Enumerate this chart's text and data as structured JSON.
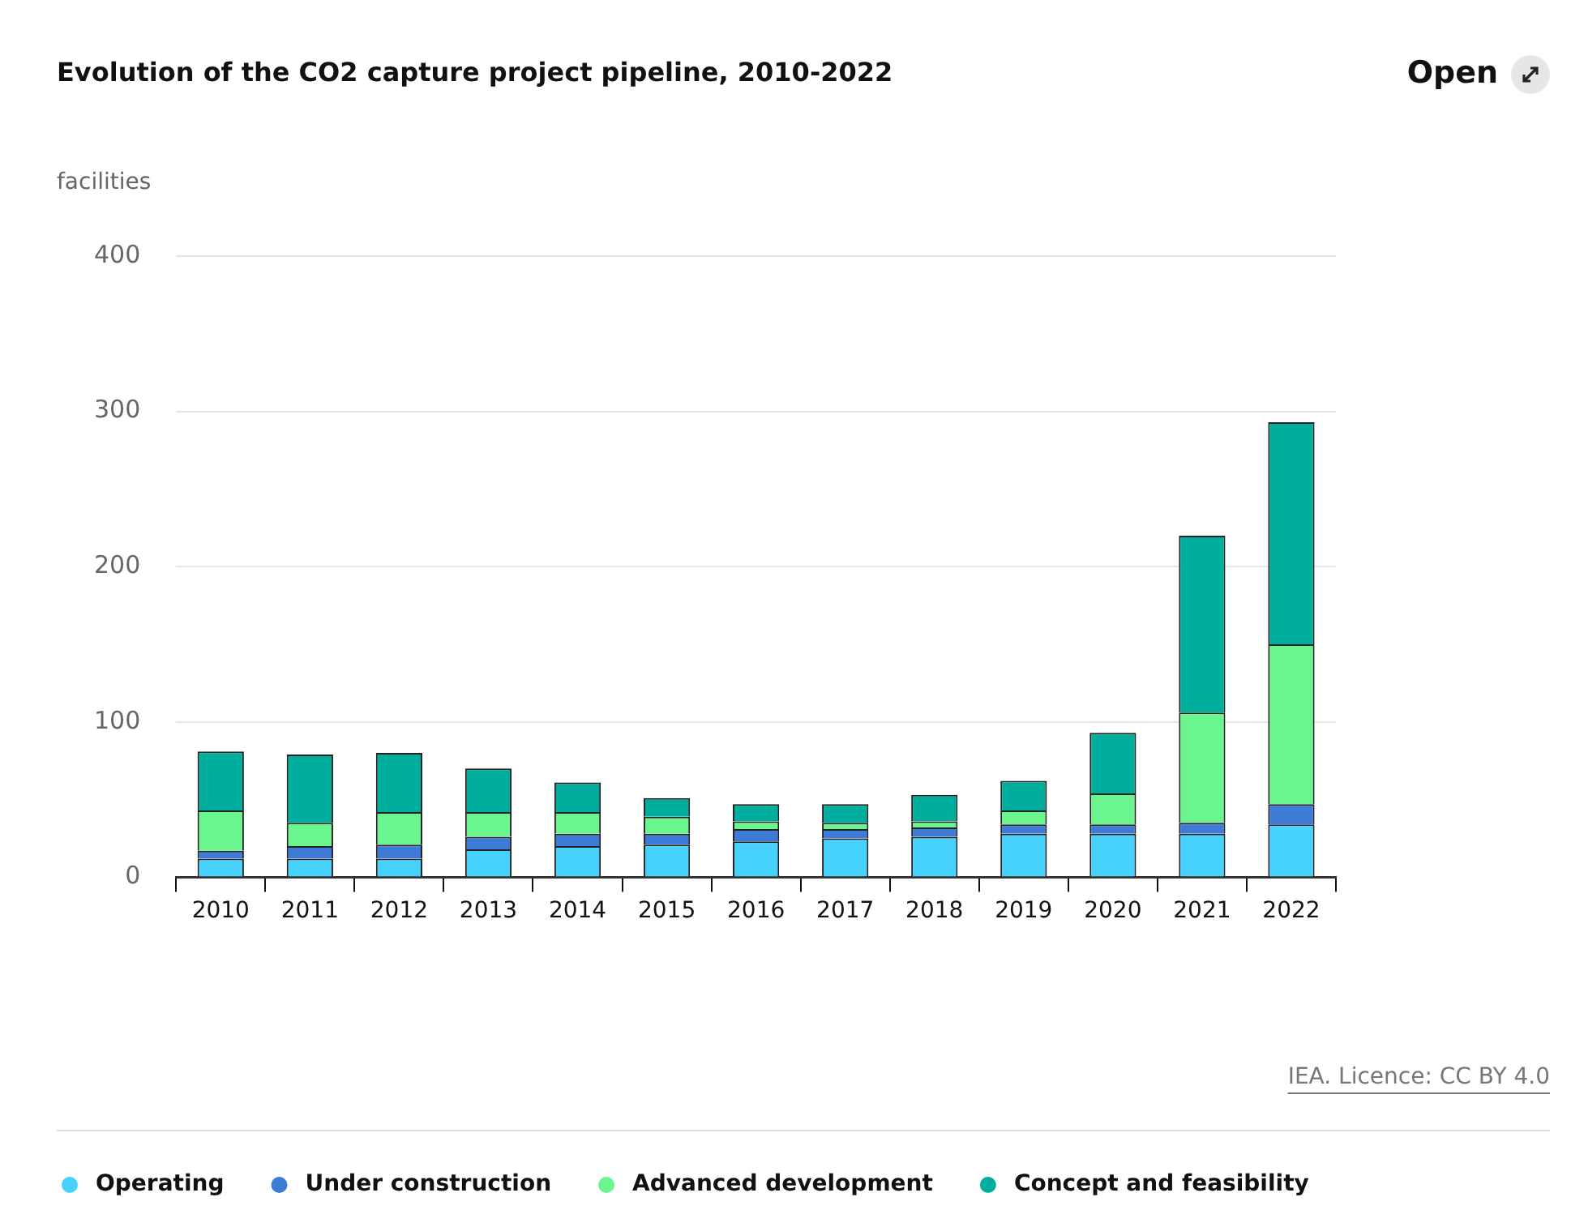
{
  "chart_data": {
    "type": "bar",
    "stacked": true,
    "title": "Evolution of the CO2 capture project pipeline, 2010-2022",
    "ylabel": "facilities",
    "categories": [
      "2010",
      "2011",
      "2012",
      "2013",
      "2014",
      "2015",
      "2016",
      "2017",
      "2018",
      "2019",
      "2020",
      "2021",
      "2022"
    ],
    "series": [
      {
        "name": "Operating",
        "color": "#47d1fd",
        "values": [
          12,
          12,
          12,
          18,
          20,
          21,
          23,
          25,
          26,
          28,
          28,
          28,
          34
        ]
      },
      {
        "name": "Under construction",
        "color": "#3e7bd6",
        "values": [
          5,
          8,
          9,
          8,
          8,
          7,
          8,
          6,
          6,
          6,
          6,
          7,
          13
        ]
      },
      {
        "name": "Advanced development",
        "color": "#6af58e",
        "values": [
          26,
          15,
          21,
          16,
          14,
          11,
          5,
          4,
          4,
          9,
          20,
          71,
          103
        ]
      },
      {
        "name": "Concept and feasibility",
        "color": "#00ae9e",
        "values": [
          38,
          44,
          38,
          28,
          19,
          12,
          11,
          12,
          17,
          19,
          39,
          114,
          143
        ]
      }
    ],
    "ylim": [
      0,
      400
    ],
    "yticks": [
      0,
      100,
      200,
      300,
      400
    ],
    "grid": "y",
    "legend": "bottom left",
    "annotations": [
      "Open",
      "IEA. Licence: CC BY 4.0"
    ]
  }
}
